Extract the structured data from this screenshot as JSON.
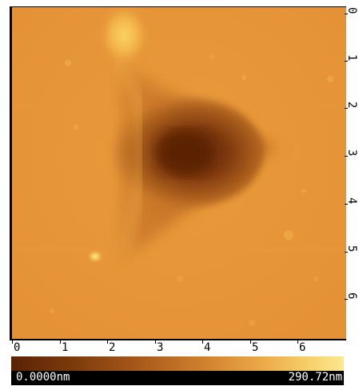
{
  "image": {
    "description_icon": "afm-height-map-icon"
  },
  "axes": {
    "right_ticks": [
      "0",
      "1",
      "2",
      "3",
      "4",
      "5",
      "6"
    ],
    "bottom_ticks": [
      "0",
      "1",
      "2",
      "3",
      "4",
      "5",
      "6"
    ]
  },
  "scale": {
    "min_label": "0.0000nm",
    "max_label": "290.72nm",
    "colors": [
      "#5a2206",
      "#a8581a",
      "#ecab48",
      "#fbe88f"
    ]
  }
}
